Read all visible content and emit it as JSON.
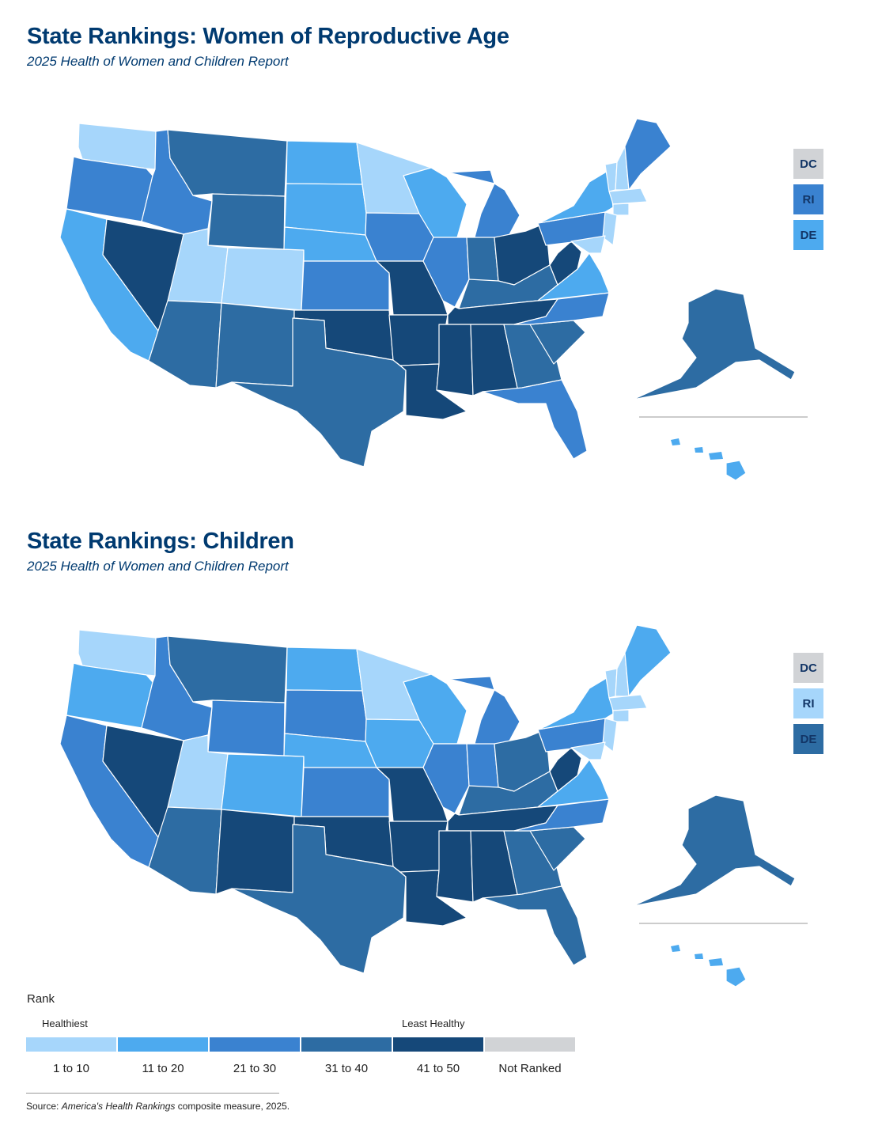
{
  "colors": {
    "r1": "#a6d6fb",
    "r2": "#4daaef",
    "r3": "#3a82d0",
    "r4": "#2d6ca3",
    "r5": "#154879",
    "nr": "#d1d3d6"
  },
  "maps": [
    {
      "title": "State Rankings: Women of Reproductive Age",
      "subtitle": "2025 Health of Women and Children Report",
      "states": {
        "WA": "r1",
        "OR": "r3",
        "CA": "r2",
        "NV": "r5",
        "ID": "r3",
        "MT": "r4",
        "WY": "r4",
        "UT": "r1",
        "AZ": "r4",
        "CO": "r1",
        "NM": "r4",
        "ND": "r2",
        "SD": "r2",
        "NE": "r2",
        "KS": "r3",
        "OK": "r5",
        "TX": "r4",
        "MN": "r1",
        "IA": "r3",
        "MO": "r5",
        "AR": "r5",
        "LA": "r5",
        "WI": "r2",
        "IL": "r3",
        "MI": "r3",
        "IN": "r4",
        "OH": "r5",
        "KY": "r4",
        "TN": "r5",
        "MS": "r5",
        "AL": "r5",
        "GA": "r4",
        "FL": "r3",
        "SC": "r4",
        "NC": "r3",
        "VA": "r2",
        "WV": "r5",
        "PA": "r3",
        "NY": "r2",
        "VT": "r1",
        "NH": "r1",
        "ME": "r3",
        "MA": "r1",
        "CT": "r1",
        "NJ": "r1",
        "MD": "r1",
        "AK": "r4",
        "HI": "r2"
      },
      "small_states": [
        {
          "label": "DC",
          "rank": "nr"
        },
        {
          "label": "RI",
          "rank": "r3"
        },
        {
          "label": "DE",
          "rank": "r2"
        }
      ]
    },
    {
      "title": "State Rankings: Children",
      "subtitle": "2025 Health of Women and Children Report",
      "states": {
        "WA": "r1",
        "OR": "r2",
        "CA": "r3",
        "NV": "r5",
        "ID": "r3",
        "MT": "r4",
        "WY": "r3",
        "UT": "r1",
        "AZ": "r4",
        "CO": "r2",
        "NM": "r5",
        "ND": "r2",
        "SD": "r3",
        "NE": "r2",
        "KS": "r3",
        "OK": "r5",
        "TX": "r4",
        "MN": "r1",
        "IA": "r2",
        "MO": "r5",
        "AR": "r5",
        "LA": "r5",
        "WI": "r2",
        "IL": "r3",
        "MI": "r3",
        "IN": "r3",
        "OH": "r4",
        "KY": "r4",
        "TN": "r5",
        "MS": "r5",
        "AL": "r5",
        "GA": "r4",
        "FL": "r4",
        "SC": "r4",
        "NC": "r3",
        "VA": "r2",
        "WV": "r5",
        "PA": "r3",
        "NY": "r2",
        "VT": "r1",
        "NH": "r1",
        "ME": "r2",
        "MA": "r1",
        "CT": "r1",
        "NJ": "r1",
        "MD": "r1",
        "AK": "r4",
        "HI": "r2"
      },
      "small_states": [
        {
          "label": "DC",
          "rank": "nr"
        },
        {
          "label": "RI",
          "rank": "r1"
        },
        {
          "label": "DE",
          "rank": "r4"
        }
      ]
    }
  ],
  "legend": {
    "title": "Rank",
    "healthiest": "Healthiest",
    "least_healthy": "Least Healthy",
    "items": [
      {
        "label": "1 to 10",
        "rank": "r1"
      },
      {
        "label": "11 to 20",
        "rank": "r2"
      },
      {
        "label": "21 to 30",
        "rank": "r3"
      },
      {
        "label": "31 to 40",
        "rank": "r4"
      },
      {
        "label": "41 to 50",
        "rank": "r5"
      },
      {
        "label": "Not Ranked",
        "rank": "nr"
      }
    ]
  },
  "source": {
    "prefix": "Source: ",
    "publication": "America's Health Rankings",
    "suffix": " composite measure, 2025."
  }
}
